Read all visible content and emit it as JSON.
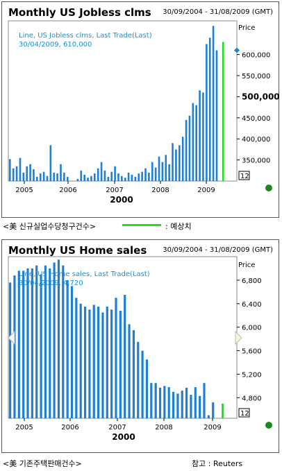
{
  "panel1": {
    "title": "Monthly US Jobless clms",
    "date_range": "30/09/2004 - 31/08/2009 (GMT)",
    "tooltip_line1": "Line, US Jobless clms, Last Trade(Last)",
    "tooltip_line2": "30/04/2009, 610,000",
    "price_label": "Price",
    "counter": "12",
    "year_label": "2000",
    "x_ticks": [
      "2005",
      "2006",
      "2007",
      "2008",
      "2009"
    ]
  },
  "panel2": {
    "title": "Monthly US Home sales",
    "date_range": "30/09/2004 - 31/08/2009 (GMT)",
    "tooltip_line1": "Line, US Home sales, Last Trade(Last)",
    "tooltip_line2": "30/04/2009, 4,720",
    "price_label": "Price",
    "counter": "12",
    "year_label": "2000",
    "x_ticks": [
      "2005",
      "2006",
      "2007",
      "2008",
      "2009"
    ]
  },
  "legend1": {
    "series_label": "<美 신규실업수당청구건수>",
    "forecast_label": ": 예상치"
  },
  "footer2": {
    "series_label": "<美 기존주택판매건수>",
    "source_label": "참고 : Reuters"
  },
  "colors": {
    "bar": "#1e7fd6",
    "forecast": "#22dd22",
    "tooltip": "#1a8fd0",
    "plot_bg": "#ffffff",
    "dot": "#1a8a1a",
    "marker": "#1e7fd6"
  },
  "chart_data": [
    {
      "type": "bar",
      "title": "Monthly US Jobless clms",
      "ylabel": "Price",
      "ylim": [
        300000,
        680000
      ],
      "y_ticks": [
        350000,
        400000,
        450000,
        500000,
        550000,
        600000
      ],
      "y_tick_labels": [
        "350,000",
        "400,000",
        "450,000",
        "500,000",
        "550,000",
        "600,000"
      ],
      "x_ticks": [
        "2005",
        "2006",
        "2007",
        "2008",
        "2009"
      ],
      "current_marker": 610000,
      "series": [
        {
          "name": "US Jobless clms",
          "values": [
            352000,
            330000,
            335000,
            355000,
            320000,
            335000,
            340000,
            328000,
            310000,
            318000,
            322000,
            312000,
            385000,
            320000,
            318000,
            340000,
            320000,
            310000,
            290000,
            300000,
            305000,
            325000,
            315000,
            308000,
            312000,
            318000,
            330000,
            345000,
            325000,
            310000,
            322000,
            335000,
            318000,
            312000,
            308000,
            320000,
            315000,
            310000,
            318000,
            322000,
            330000,
            320000,
            345000,
            332000,
            358000,
            345000,
            362000,
            340000,
            390000,
            375000,
            385000,
            405000,
            445000,
            455000,
            485000,
            480000,
            515000,
            510000,
            625000,
            640000,
            668000,
            610000
          ]
        },
        {
          "name": "forecast",
          "values": [
            630000
          ]
        }
      ]
    },
    {
      "type": "bar",
      "title": "Monthly US Home sales",
      "ylabel": "Price",
      "ylim": [
        4450,
        7200
      ],
      "y_ticks": [
        4800,
        5200,
        5600,
        6000,
        6400,
        6800
      ],
      "y_tick_labels": [
        "4,800",
        "5,200",
        "5,600",
        "6,000",
        "6,400",
        "6,800"
      ],
      "x_ticks": [
        "2005",
        "2006",
        "2007",
        "2008",
        "2009"
      ],
      "series": [
        {
          "name": "US Home sales",
          "values": [
            6760,
            6880,
            6960,
            6960,
            7000,
            7000,
            7050,
            6900,
            7050,
            7000,
            7100,
            7150,
            7050,
            6800,
            6700,
            6500,
            6400,
            6350,
            6300,
            6380,
            6350,
            6250,
            6350,
            6300,
            6500,
            6280,
            6550,
            6050,
            5950,
            5750,
            5600,
            5450,
            5050,
            5050,
            4970,
            5000,
            4980,
            4900,
            4870,
            4920,
            4970,
            4850,
            4980,
            4830,
            5050,
            4500,
            4720,
            4450
          ]
        },
        {
          "name": "forecast",
          "values": [
            4700
          ]
        }
      ]
    }
  ]
}
